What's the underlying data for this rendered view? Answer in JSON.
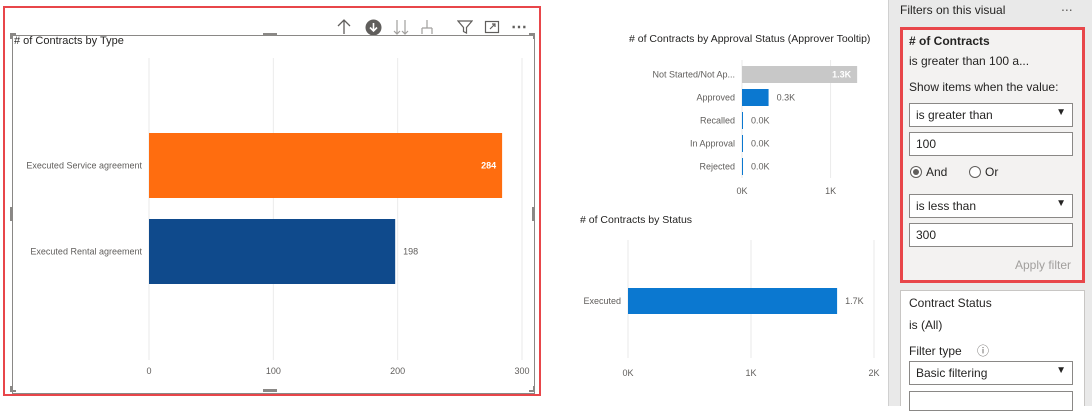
{
  "toolbar": {
    "icons": [
      "arrow-up-icon",
      "drill-down-circle-icon",
      "double-arrow-down-icon",
      "expand-hierarchy-icon",
      "filter-icon",
      "focus-mode-icon",
      "more-options-icon"
    ],
    "more_glyph": "⋯"
  },
  "charts": {
    "by_type": {
      "title": "# of Contracts by Type"
    },
    "by_approval": {
      "title": "# of Contracts by Approval Status (Approver Tooltip)"
    },
    "by_status": {
      "title": "# of Contracts by Status"
    }
  },
  "chart_data": [
    {
      "type": "bar",
      "title": "# of Contracts by Type",
      "orientation": "horizontal",
      "categories": [
        "Executed Service agreement",
        "Executed Rental agreement"
      ],
      "values": [
        284,
        198
      ],
      "data_labels": [
        "284",
        "198"
      ],
      "colors": [
        "#ff6d0f",
        "#0f4a8c"
      ],
      "xlim": [
        0,
        300
      ],
      "x_ticks": [
        "0",
        "100",
        "200",
        "300"
      ],
      "grid": true
    },
    {
      "type": "bar",
      "title": "# of Contracts by Approval Status (Approver Tooltip)",
      "orientation": "horizontal",
      "categories": [
        "Not Started/Not Ap...",
        "Approved",
        "Recalled",
        "In Approval",
        "Rejected"
      ],
      "values": [
        1300,
        300,
        0,
        0,
        0
      ],
      "data_labels": [
        "1.3K",
        "0.3K",
        "0.0K",
        "0.0K",
        "0.0K"
      ],
      "colors": [
        "#c8c8c8",
        "#0b78d0",
        "#0b78d0",
        "#0b78d0",
        "#0b78d0"
      ],
      "xlim": [
        0,
        1400
      ],
      "x_ticks": [
        "0K",
        "1K"
      ],
      "grid": true
    },
    {
      "type": "bar",
      "title": "# of Contracts by Status",
      "orientation": "horizontal",
      "categories": [
        "Executed"
      ],
      "values": [
        1700
      ],
      "data_labels": [
        "1.7K"
      ],
      "colors": [
        "#0b78d0"
      ],
      "xlim": [
        0,
        2000
      ],
      "x_ticks": [
        "0K",
        "1K",
        "2K"
      ],
      "grid": true
    }
  ],
  "filter_pane": {
    "title": "Filters on this visual",
    "more": "...",
    "contracts_card": {
      "field": "# of Contracts",
      "summary": "is greater than 100 a...",
      "show_items_label": "Show items when the value:",
      "condition1": "is greater than",
      "value1": "100",
      "and_label": "And",
      "or_label": "Or",
      "and_selected": true,
      "condition2": "is less than",
      "value2": "300",
      "apply_label": "Apply filter"
    },
    "status_card": {
      "field": "Contract Status",
      "summary": "is (All)",
      "filter_type_label": "Filter type",
      "info_glyph": "ⓘ",
      "filter_type_value": "Basic filtering"
    }
  }
}
